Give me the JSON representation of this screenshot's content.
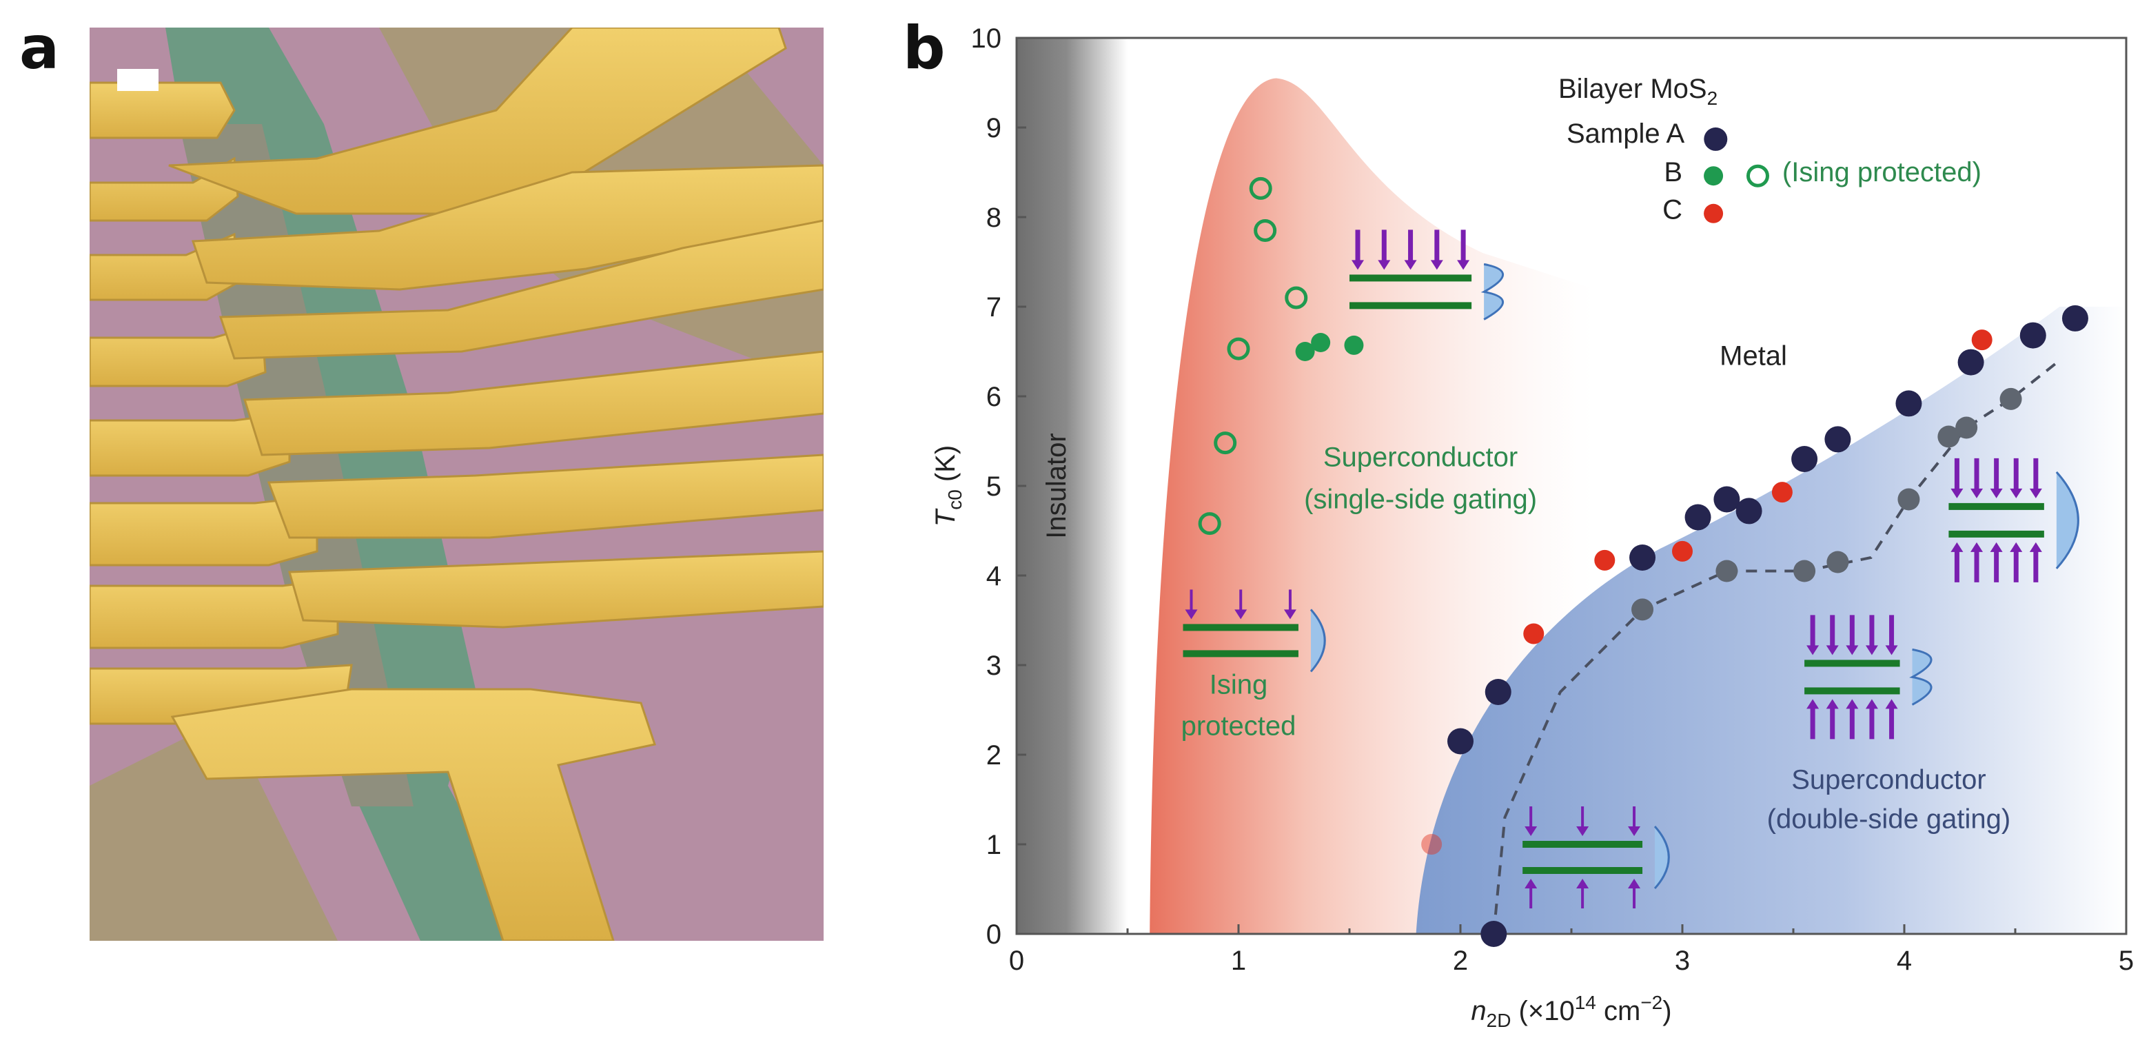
{
  "panels": {
    "a": "a",
    "b": "b"
  },
  "micrograph": {
    "colors": {
      "substrate_pink": "#b58ea3",
      "substrate_tan": "#a99879",
      "flake_green": "#6d9a83",
      "channel_gray": "#8f8f7e",
      "electrode_gold": "#e9c45c",
      "scale_bar": "#ffffff"
    }
  },
  "chart_data": {
    "type": "scatter",
    "title": "Bilayer MoS2",
    "title_parts": {
      "main": "Bilayer MoS",
      "sub": "2"
    },
    "xlabel": {
      "var": "n",
      "sub": "2D",
      "unit": " (×10",
      "exp": "14",
      "unit2": " cm",
      "exp2": "−2",
      "close": ")"
    },
    "ylabel": {
      "var": "T",
      "sub": "c0",
      "unit": " (K)"
    },
    "xlim": [
      0,
      5
    ],
    "ylim": [
      0,
      10
    ],
    "xticks": [
      "0",
      "1",
      "2",
      "3",
      "4",
      "5"
    ],
    "yticks": [
      "0",
      "1",
      "2",
      "3",
      "4",
      "5",
      "6",
      "7",
      "8",
      "9",
      "10"
    ],
    "grid": false,
    "legend": {
      "placement": "top-center",
      "sample_a": "Sample A",
      "b": "B",
      "c": "C",
      "ising": "(Ising protected)"
    },
    "series": [
      {
        "name": "Sample A",
        "color": "#25254f",
        "marker": "filled",
        "points": [
          [
            2.0,
            2.15
          ],
          [
            2.17,
            2.7
          ],
          [
            2.82,
            4.2
          ],
          [
            3.07,
            4.65
          ],
          [
            3.2,
            4.85
          ],
          [
            3.3,
            4.72
          ],
          [
            3.55,
            5.3
          ],
          [
            3.7,
            5.52
          ],
          [
            4.02,
            5.92
          ],
          [
            4.3,
            6.38
          ],
          [
            4.58,
            6.68
          ],
          [
            4.77,
            6.87
          ],
          [
            2.15,
            0.0
          ]
        ]
      },
      {
        "name": "B",
        "color": "#1f9a4f",
        "marker": "filled",
        "points": [
          [
            1.3,
            6.5
          ],
          [
            1.37,
            6.6
          ],
          [
            1.52,
            6.57
          ]
        ]
      },
      {
        "name": "B (Ising protected)",
        "color": "#1f9a4f",
        "marker": "open",
        "points": [
          [
            0.87,
            4.58
          ],
          [
            0.94,
            5.48
          ],
          [
            1.0,
            6.53
          ],
          [
            1.1,
            8.32
          ],
          [
            1.12,
            7.85
          ],
          [
            1.26,
            7.1
          ]
        ]
      },
      {
        "name": "C",
        "color": "#e0301e",
        "marker": "filled",
        "points": [
          [
            1.87,
            1.0
          ],
          [
            2.33,
            3.35
          ],
          [
            2.65,
            4.17
          ],
          [
            3.0,
            4.27
          ],
          [
            3.45,
            4.93
          ],
          [
            4.35,
            6.63
          ]
        ]
      },
      {
        "color": "#5f6670",
        "marker": "filled",
        "points": [
          [
            2.82,
            3.62
          ],
          [
            3.2,
            4.05
          ],
          [
            3.55,
            4.05
          ],
          [
            3.7,
            4.15
          ],
          [
            4.02,
            4.85
          ],
          [
            4.2,
            5.55
          ],
          [
            4.28,
            5.65
          ],
          [
            4.48,
            5.97
          ]
        ]
      }
    ],
    "dashed_curve": [
      [
        2.15,
        0
      ],
      [
        2.2,
        1.3
      ],
      [
        2.45,
        2.7
      ],
      [
        2.82,
        3.62
      ],
      [
        3.2,
        4.05
      ],
      [
        3.55,
        4.05
      ],
      [
        3.85,
        4.2
      ],
      [
        4.02,
        4.85
      ],
      [
        4.28,
        5.65
      ],
      [
        4.48,
        5.97
      ],
      [
        4.7,
        6.4
      ]
    ],
    "regions": {
      "insulator": {
        "label": "Insulator",
        "color": "#6e6e6e"
      },
      "single_side": {
        "label1": "Superconductor",
        "label2": "(single-side gating)",
        "color": "#e8735f"
      },
      "ising": {
        "label1": "Ising",
        "label2": "protected"
      },
      "metal": {
        "label": "Metal"
      },
      "double_side": {
        "label1": "Superconductor",
        "label2": "(double-side gating)",
        "color": "#7f9ccf"
      }
    },
    "annotation_colors": {
      "green_text": "#2e8a4e",
      "blue_text": "#3a4b78",
      "arrow_purple": "#7a1fb0",
      "layer_green": "#1a7a2a",
      "bump_blue": "#9cc3ea"
    }
  }
}
